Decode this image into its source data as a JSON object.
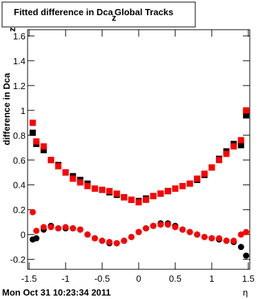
{
  "chart_data": {
    "type": "scatter",
    "title": "Fitted difference in Dca",
    "title_subscript": "z",
    "title_suffix": "Global Tracks",
    "y_label": "difference in Dca",
    "y_label_subscript": "z",
    "x_label": "η",
    "footer": "Mon Oct 31 10:23:34 2011",
    "xlim": [
      -1.52,
      1.52
    ],
    "ylim": [
      -0.28,
      1.65
    ],
    "xticks": [
      -1.5,
      -1,
      -0.5,
      0,
      0.5,
      1,
      1.5
    ],
    "yticks": [
      -0.2,
      0,
      0.2,
      0.4,
      0.6,
      0.8,
      1,
      1.2,
      1.4,
      1.6
    ],
    "grid": false,
    "x": [
      -1.45,
      -1.4,
      -1.3,
      -1.2,
      -1.1,
      -1.0,
      -0.9,
      -0.8,
      -0.7,
      -0.6,
      -0.5,
      -0.4,
      -0.3,
      -0.2,
      -0.1,
      0,
      0.1,
      0.2,
      0.3,
      0.4,
      0.5,
      0.6,
      0.7,
      0.8,
      0.9,
      1.0,
      1.1,
      1.2,
      1.3,
      1.4,
      1.47
    ],
    "series": [
      {
        "marker": "square",
        "color": "#000000",
        "values": [
          0.82,
          0.73,
          0.68,
          0.6,
          0.56,
          0.5,
          0.47,
          0.44,
          0.41,
          0.37,
          0.36,
          0.34,
          0.32,
          0.3,
          0.28,
          0.27,
          0.29,
          0.31,
          0.33,
          0.35,
          0.37,
          0.39,
          0.41,
          0.44,
          0.48,
          0.54,
          0.61,
          0.67,
          0.73,
          0.72,
          0.96
        ]
      },
      {
        "marker": "square",
        "color": "#ff0000",
        "values": [
          0.9,
          0.75,
          0.71,
          0.6,
          0.55,
          0.5,
          0.45,
          0.42,
          0.39,
          0.37,
          0.36,
          0.35,
          0.33,
          0.3,
          0.28,
          0.26,
          0.28,
          0.31,
          0.33,
          0.35,
          0.37,
          0.39,
          0.41,
          0.45,
          0.49,
          0.54,
          0.6,
          0.65,
          0.71,
          0.76,
          1.0
        ]
      },
      {
        "marker": "circle",
        "color": "#000000",
        "values": [
          -0.04,
          -0.03,
          0.04,
          0.07,
          0.05,
          0.05,
          0.05,
          0.04,
          0.0,
          -0.03,
          -0.05,
          -0.07,
          -0.07,
          -0.05,
          -0.02,
          0.02,
          0.05,
          0.07,
          0.09,
          0.09,
          0.07,
          0.04,
          0.02,
          0.0,
          -0.02,
          -0.03,
          -0.04,
          -0.05,
          -0.06,
          -0.1,
          -0.17
        ]
      },
      {
        "marker": "circle",
        "color": "#ff0000",
        "values": [
          0.18,
          0.03,
          0.06,
          0.06,
          0.05,
          0.06,
          0.05,
          0.04,
          0.0,
          -0.03,
          -0.05,
          -0.06,
          -0.07,
          -0.05,
          -0.02,
          0.02,
          0.05,
          0.07,
          0.08,
          0.08,
          0.06,
          0.04,
          0.02,
          0.0,
          -0.02,
          -0.03,
          -0.03,
          -0.05,
          -0.05,
          0.0,
          0.02
        ]
      }
    ]
  }
}
